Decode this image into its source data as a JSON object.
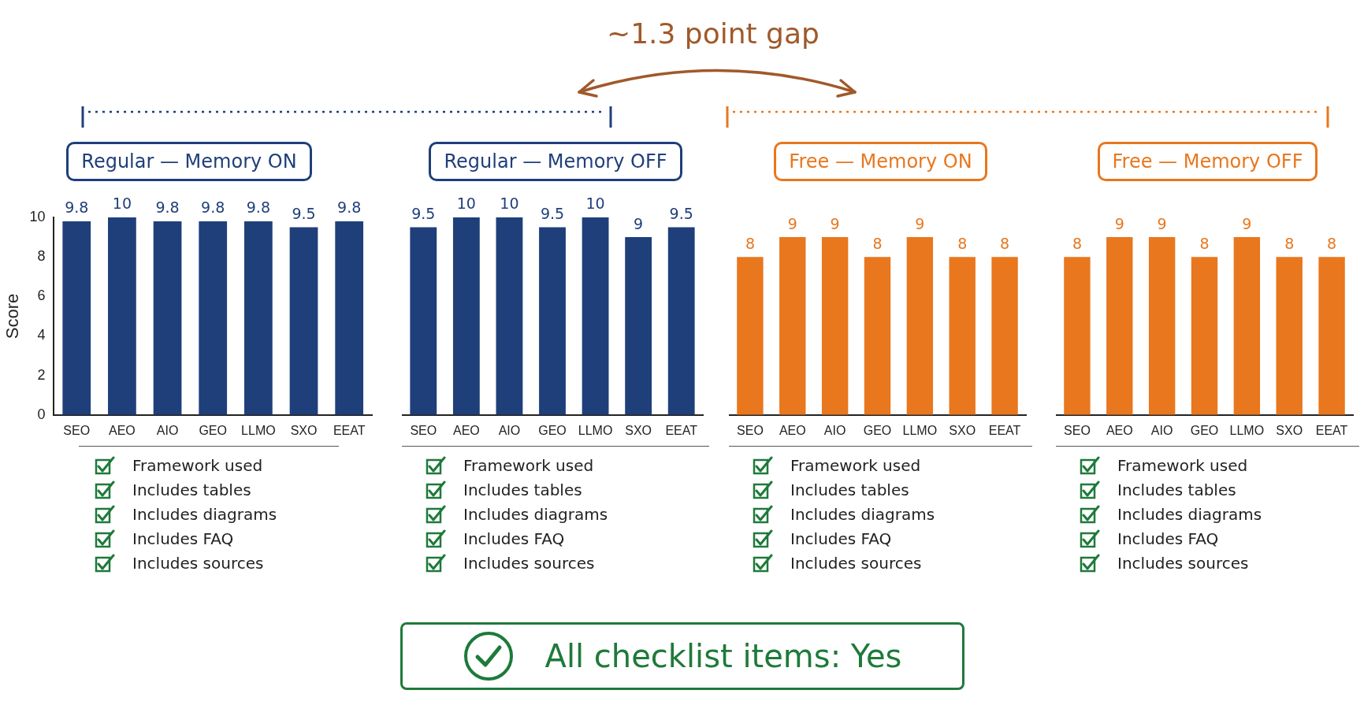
{
  "chart_data": [
    {
      "type": "bar",
      "title": "Regular — Memory ON",
      "ylabel": "Score",
      "categories": [
        "SEO",
        "AEO",
        "AIO",
        "GEO",
        "LLMO",
        "SXO",
        "EEAT"
      ],
      "values": [
        9.8,
        10,
        9.8,
        9.8,
        9.8,
        9.5,
        9.8
      ],
      "color": "#1f3f7a",
      "ylim": [
        0,
        10
      ],
      "yticks": [
        0,
        2,
        4,
        6,
        8,
        10
      ],
      "data_labels": true,
      "grid": false,
      "annotations": [
        "Framework used",
        "Includes tables",
        "Includes diagrams",
        "Includes FAQ",
        "Includes sources"
      ]
    },
    {
      "type": "bar",
      "title": "Regular — Memory OFF",
      "categories": [
        "SEO",
        "AEO",
        "AIO",
        "GEO",
        "LLMO",
        "SXO",
        "EEAT"
      ],
      "values": [
        9.5,
        10,
        10,
        9.5,
        10,
        9,
        9.5
      ],
      "color": "#1f3f7a",
      "ylim": [
        0,
        10
      ],
      "tick_labels": "x",
      "data_labels": true,
      "grid": false,
      "annotations": [
        "Framework used",
        "Includes tables",
        "Includes diagrams",
        "Includes FAQ",
        "Includes sources"
      ]
    },
    {
      "type": "bar",
      "title": "Free — Memory ON",
      "categories": [
        "SEO",
        "AEO",
        "AIO",
        "GEO",
        "LLMO",
        "SXO",
        "EEAT"
      ],
      "values": [
        8,
        9,
        9,
        8,
        9,
        8,
        8
      ],
      "color": "#e8771e",
      "ylim": [
        0,
        10
      ],
      "tick_labels": "x",
      "data_labels": true,
      "grid": false,
      "annotations": [
        "Framework used",
        "Includes tables",
        "Includes diagrams",
        "Includes FAQ",
        "Includes sources"
      ]
    },
    {
      "type": "bar",
      "title": "Free — Memory OFF",
      "categories": [
        "SEO",
        "AEO",
        "AIO",
        "GEO",
        "LLMO",
        "SXO",
        "EEAT"
      ],
      "values": [
        8,
        9,
        9,
        8,
        9,
        8,
        8
      ],
      "color": "#e8771e",
      "ylim": [
        0,
        10
      ],
      "tick_labels": "x",
      "data_labels": true,
      "grid": false,
      "annotations": [
        "Framework used",
        "Includes tables",
        "Includes diagrams",
        "Includes FAQ",
        "Includes sources"
      ]
    },
    {
      "type": "other",
      "annotations": [
        "~1.3 point gap",
        "All checklist items: Yes"
      ]
    }
  ]
}
